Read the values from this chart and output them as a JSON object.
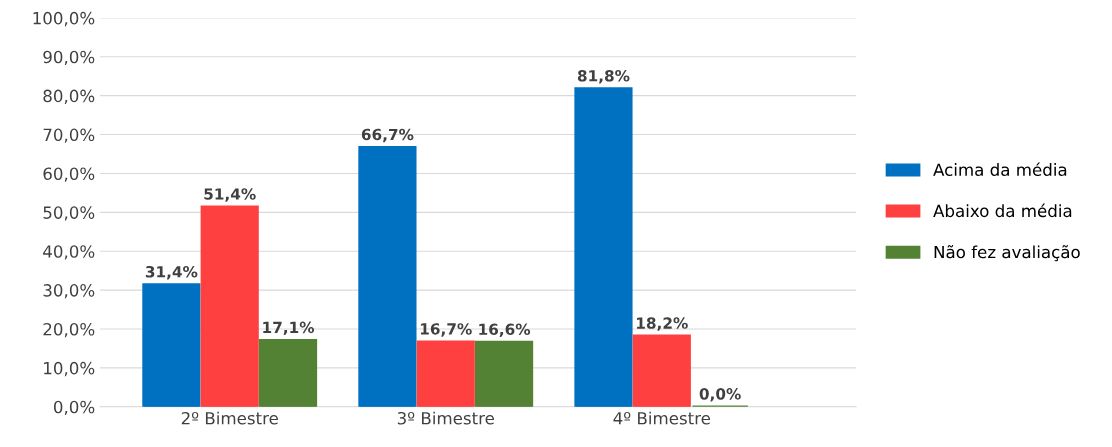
{
  "chart_data": {
    "type": "bar",
    "categories": [
      "2º Bimestre",
      "3º Bimestre",
      "4º Bimestre"
    ],
    "series": [
      {
        "name": "Acima da média",
        "color": "#0070c0",
        "values": [
          31.4,
          66.7,
          81.8
        ],
        "value_labels": [
          "31,4%",
          "66,7%",
          "81,8%"
        ]
      },
      {
        "name": "Abaixo da média",
        "color": "#ff4040",
        "values": [
          51.4,
          16.7,
          18.2
        ],
        "value_labels": [
          "51,4%",
          "16,7%",
          "18,2%"
        ]
      },
      {
        "name": "Não fez avaliação",
        "color": "#548235",
        "values": [
          17.1,
          16.6,
          0.0
        ],
        "value_labels": [
          "17,1%",
          "16,6%",
          "0,0%"
        ]
      }
    ],
    "ylim": [
      0,
      100
    ],
    "yticks": [
      {
        "value": 0,
        "label": "0,0%"
      },
      {
        "value": 10,
        "label": "10,0%"
      },
      {
        "value": 20,
        "label": "20,0%"
      },
      {
        "value": 30,
        "label": "30,0%"
      },
      {
        "value": 40,
        "label": "40,0%"
      },
      {
        "value": 50,
        "label": "50,0%"
      },
      {
        "value": 60,
        "label": "60,0%"
      },
      {
        "value": 70,
        "label": "70,0%"
      },
      {
        "value": 80,
        "label": "80,0%"
      },
      {
        "value": 90,
        "label": "90,0%"
      },
      {
        "value": 100,
        "label": "100,0%"
      }
    ],
    "grid": "y",
    "legend": "right"
  }
}
